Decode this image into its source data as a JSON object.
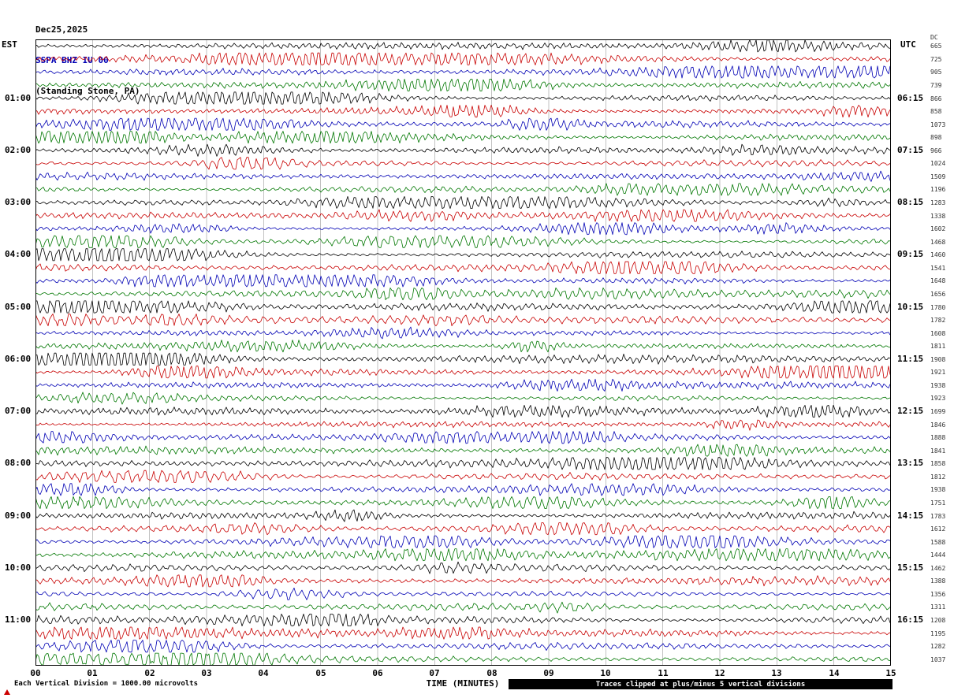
{
  "header": {
    "date": "Dec25,2025",
    "station": "SSPA BHZ IU 00",
    "location": "(Standing Stone, PA)"
  },
  "axes": {
    "left_label": "EST",
    "right_label": "UTC",
    "dc_label": "DC",
    "x_label": "TIME (MINUTES)",
    "x_ticks": [
      "00",
      "01",
      "02",
      "03",
      "04",
      "05",
      "06",
      "07",
      "08",
      "09",
      "10",
      "11",
      "12",
      "13",
      "14",
      "15"
    ]
  },
  "footer": {
    "left": "Each Vertical Division = 1000.00 microvolts",
    "right": "Traces clipped at plus/minus 5 vertical divisions"
  },
  "colors": {
    "black": "#000000",
    "red": "#c80000",
    "blue": "#0000b4",
    "green": "#007700",
    "grid": "#999999",
    "station_line": "#0000b4"
  },
  "chart_data": {
    "type": "line",
    "description": "Helicorder-style seismogram, 48 traces of 15 minutes each, colors cycling black/red/blue/green, amplitudes clipped at +/-5 vertical divisions",
    "x_range_minutes": [
      0,
      15
    ],
    "minutes_per_row": 15,
    "rows": [
      {
        "est": "",
        "utc": "",
        "dc": 665,
        "color": "black"
      },
      {
        "est": "",
        "utc": "",
        "dc": 725,
        "color": "red"
      },
      {
        "est": "",
        "utc": "",
        "dc": 905,
        "color": "blue"
      },
      {
        "est": "",
        "utc": "",
        "dc": 739,
        "color": "green"
      },
      {
        "est": "01:00",
        "utc": "06:15",
        "dc": 866,
        "color": "black"
      },
      {
        "est": "",
        "utc": "",
        "dc": 858,
        "color": "red"
      },
      {
        "est": "",
        "utc": "",
        "dc": 1073,
        "color": "blue"
      },
      {
        "est": "",
        "utc": "",
        "dc": 898,
        "color": "green"
      },
      {
        "est": "02:00",
        "utc": "07:15",
        "dc": 966,
        "color": "black"
      },
      {
        "est": "",
        "utc": "",
        "dc": 1024,
        "color": "red"
      },
      {
        "est": "",
        "utc": "",
        "dc": 1509,
        "color": "blue"
      },
      {
        "est": "",
        "utc": "",
        "dc": 1196,
        "color": "green"
      },
      {
        "est": "03:00",
        "utc": "08:15",
        "dc": 1283,
        "color": "black"
      },
      {
        "est": "",
        "utc": "",
        "dc": 1338,
        "color": "red"
      },
      {
        "est": "",
        "utc": "",
        "dc": 1602,
        "color": "blue"
      },
      {
        "est": "",
        "utc": "",
        "dc": 1468,
        "color": "green"
      },
      {
        "est": "04:00",
        "utc": "09:15",
        "dc": 1460,
        "color": "black"
      },
      {
        "est": "",
        "utc": "",
        "dc": 1541,
        "color": "red"
      },
      {
        "est": "",
        "utc": "",
        "dc": 1648,
        "color": "blue"
      },
      {
        "est": "",
        "utc": "",
        "dc": 1656,
        "color": "green"
      },
      {
        "est": "05:00",
        "utc": "10:15",
        "dc": 1780,
        "color": "black"
      },
      {
        "est": "",
        "utc": "",
        "dc": 1782,
        "color": "red"
      },
      {
        "est": "",
        "utc": "",
        "dc": 1608,
        "color": "blue"
      },
      {
        "est": "",
        "utc": "",
        "dc": 1811,
        "color": "green"
      },
      {
        "est": "06:00",
        "utc": "11:15",
        "dc": 1908,
        "color": "black"
      },
      {
        "est": "",
        "utc": "",
        "dc": 1921,
        "color": "red"
      },
      {
        "est": "",
        "utc": "",
        "dc": 1938,
        "color": "blue"
      },
      {
        "est": "",
        "utc": "",
        "dc": 1923,
        "color": "green"
      },
      {
        "est": "07:00",
        "utc": "12:15",
        "dc": 1699,
        "color": "black"
      },
      {
        "est": "",
        "utc": "",
        "dc": 1846,
        "color": "red"
      },
      {
        "est": "",
        "utc": "",
        "dc": 1888,
        "color": "blue"
      },
      {
        "est": "",
        "utc": "",
        "dc": 1841,
        "color": "green"
      },
      {
        "est": "08:00",
        "utc": "13:15",
        "dc": 1858,
        "color": "black"
      },
      {
        "est": "",
        "utc": "",
        "dc": 1812,
        "color": "red"
      },
      {
        "est": "",
        "utc": "",
        "dc": 1938,
        "color": "blue"
      },
      {
        "est": "",
        "utc": "",
        "dc": 1751,
        "color": "green"
      },
      {
        "est": "09:00",
        "utc": "14:15",
        "dc": 1783,
        "color": "black"
      },
      {
        "est": "",
        "utc": "",
        "dc": 1612,
        "color": "red"
      },
      {
        "est": "",
        "utc": "",
        "dc": 1588,
        "color": "blue"
      },
      {
        "est": "",
        "utc": "",
        "dc": 1444,
        "color": "green"
      },
      {
        "est": "10:00",
        "utc": "15:15",
        "dc": 1462,
        "color": "black"
      },
      {
        "est": "",
        "utc": "",
        "dc": 1388,
        "color": "red"
      },
      {
        "est": "",
        "utc": "",
        "dc": 1356,
        "color": "blue"
      },
      {
        "est": "",
        "utc": "",
        "dc": 1311,
        "color": "green"
      },
      {
        "est": "11:00",
        "utc": "16:15",
        "dc": 1208,
        "color": "black"
      },
      {
        "est": "",
        "utc": "",
        "dc": 1195,
        "color": "red"
      },
      {
        "est": "",
        "utc": "",
        "dc": 1282,
        "color": "blue"
      },
      {
        "est": "",
        "utc": "",
        "dc": 1037,
        "color": "green"
      }
    ]
  }
}
